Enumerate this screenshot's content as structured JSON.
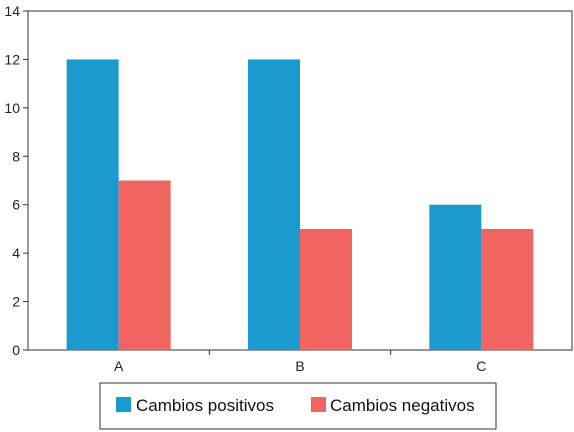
{
  "chart_data": {
    "type": "bar",
    "categories": [
      "A",
      "B",
      "C"
    ],
    "series": [
      {
        "name": "Cambios positivos",
        "values": [
          12,
          12,
          6
        ],
        "color": "#1b9ad0"
      },
      {
        "name": "Cambios negativos",
        "values": [
          7,
          5,
          5
        ],
        "color": "#f0655f"
      }
    ],
    "ylim": [
      0,
      14
    ],
    "yticks": [
      0,
      2,
      4,
      6,
      8,
      10,
      12,
      14
    ],
    "title": "",
    "xlabel": "",
    "ylabel": "",
    "grid": false,
    "legend_position": "bottom"
  }
}
